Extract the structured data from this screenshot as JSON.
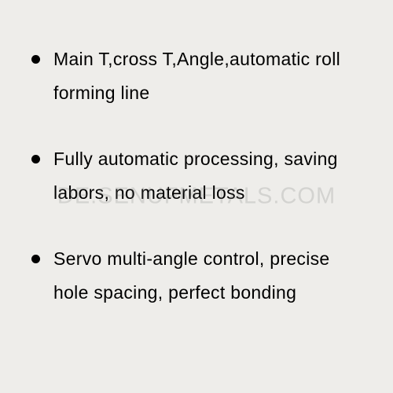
{
  "list": {
    "items": [
      "Main T,cross T,Angle,automatic roll forming line",
      "Fully automatic processing, saving labors, no material loss",
      "Servo multi-angle control, precise hole spacing, perfect bonding"
    ]
  },
  "watermark": {
    "text": "DE.SENUFMETALS.COM"
  },
  "style": {
    "background_color": "#eeedea",
    "text_color": "#000000",
    "bullet_color": "#000000",
    "font_size": 23,
    "line_height": 1.85,
    "watermark_color": "rgba(120,120,120,0.22)"
  }
}
